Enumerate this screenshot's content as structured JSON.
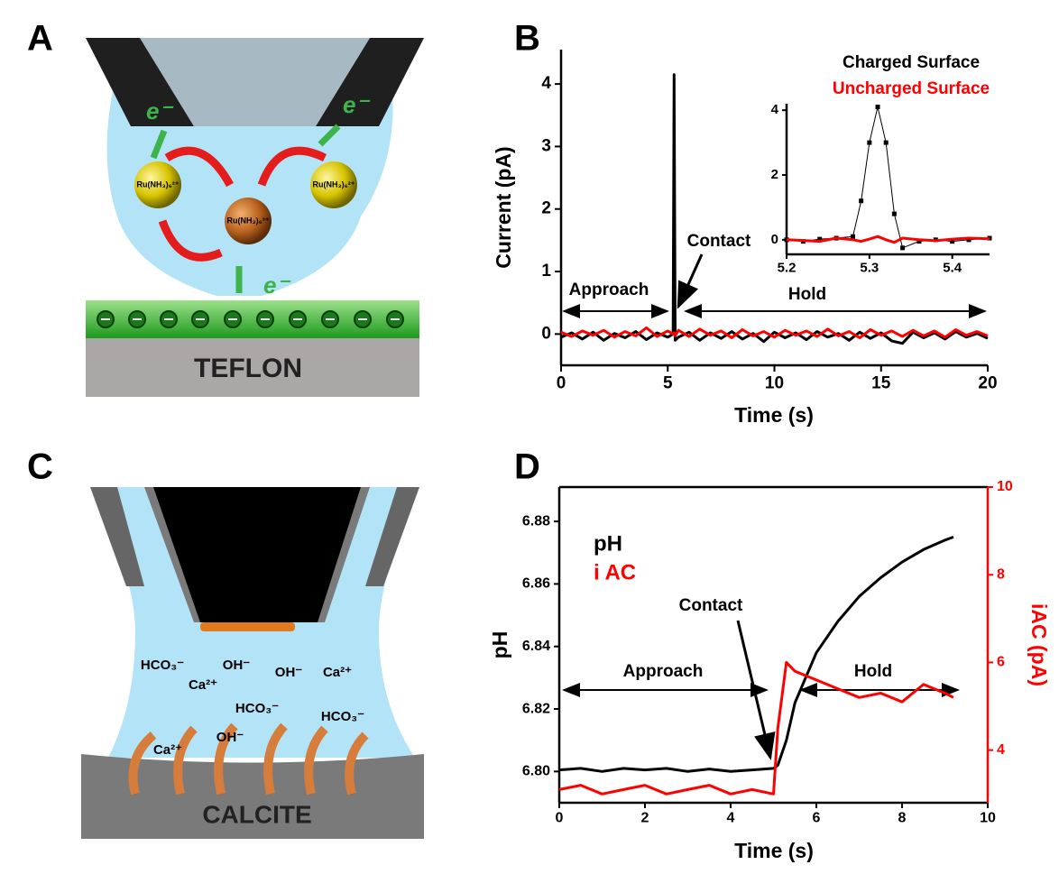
{
  "panel_a": {
    "label": "A",
    "electrons": [
      "e⁻",
      "e⁻",
      "e⁻"
    ],
    "molecules": [
      "Ru(NH₃)₆²⁺",
      "Ru(NH₃)₆³⁺",
      "Ru(NH₃)₆²⁺"
    ],
    "substrate": "TEFLON"
  },
  "panel_c": {
    "label": "C",
    "ions": [
      "HCO₃⁻",
      "OH⁻",
      "Ca²⁺",
      "OH⁻",
      "Ca²⁺",
      "HCO₃⁻",
      "Ca²⁺",
      "HCO₃⁻",
      "OH⁻"
    ],
    "substrate": "CALCITE"
  },
  "chart_data": [
    {
      "type": "line",
      "label": "B",
      "xlabel": "Time  (s)",
      "ylabel": "Current (pA)",
      "xlim": [
        0,
        20
      ],
      "ylim": [
        -0.5,
        4.55
      ],
      "xticks": [
        0,
        5,
        10,
        15,
        20
      ],
      "yticks": [
        0,
        1,
        2,
        3,
        4
      ],
      "x": [
        0,
        0.5,
        1,
        1.5,
        2,
        2.5,
        3,
        3.5,
        4,
        4.5,
        5,
        5.25,
        5.3,
        5.35,
        5.5,
        6,
        6.5,
        7,
        7.5,
        8,
        8.5,
        9,
        9.5,
        10,
        10.5,
        11,
        11.5,
        12,
        12.5,
        13,
        13.5,
        14,
        14.5,
        15,
        15.5,
        16,
        16.5,
        17,
        17.5,
        18,
        18.5,
        19,
        19.5,
        20
      ],
      "series": [
        {
          "name": "Charged Surface",
          "color": "#000000",
          "values": [
            -0.05,
            0.02,
            -0.08,
            0.03,
            -0.1,
            0.01,
            -0.06,
            0.04,
            -0.09,
            0.02,
            -0.05,
            0,
            4.15,
            -0.1,
            -0.05,
            0.03,
            -0.1,
            0.02,
            -0.07,
            0.04,
            -0.08,
            0.01,
            -0.12,
            0.03,
            -0.06,
            0.02,
            -0.09,
            0.04,
            -0.05,
            0.01,
            -0.1,
            0.03,
            -0.07,
            0.02,
            -0.11,
            -0.15,
            0.03,
            -0.06,
            0.02,
            -0.08,
            0.04,
            -0.05,
            0.01,
            -0.07
          ]
        },
        {
          "name": "Uncharged Surface",
          "color": "#ff0000",
          "values": [
            0.03,
            -0.04,
            0.05,
            -0.02,
            0.06,
            -0.05,
            0.04,
            -0.03,
            0.1,
            -0.04,
            0.05,
            0,
            0.02,
            -0.03,
            0.06,
            -0.04,
            0.08,
            -0.02,
            0.05,
            -0.06,
            0.07,
            -0.03,
            0.04,
            -0.05,
            0.06,
            -0.02,
            0.05,
            -0.04,
            0.08,
            -0.03,
            0.04,
            -0.06,
            0.07,
            -0.02,
            0.05,
            -0.04,
            0.06,
            -0.03,
            0.05,
            -0.05,
            0.07,
            -0.02,
            0.04,
            -0.03
          ]
        }
      ],
      "annotations": [
        "Approach",
        "Contact",
        "Hold"
      ]
    },
    {
      "type": "line",
      "xlim": [
        5.2,
        5.445
      ],
      "ylim": [
        -0.45,
        4.2
      ],
      "xticks": [
        5.2,
        5.3,
        5.4
      ],
      "yticks": [
        0,
        2,
        4
      ],
      "x": [
        5.2,
        5.22,
        5.24,
        5.26,
        5.28,
        5.29,
        5.3,
        5.31,
        5.32,
        5.33,
        5.34,
        5.36,
        5.38,
        5.4,
        5.42,
        5.445
      ],
      "series": [
        {
          "color": "#000000",
          "markers": true,
          "values": [
            0,
            -0.05,
            0.02,
            0.05,
            0.1,
            1.2,
            3.0,
            4.1,
            3.0,
            0.8,
            -0.25,
            -0.05,
            0,
            -0.05,
            0,
            0.05
          ]
        },
        {
          "color": "#ff0000",
          "values": [
            0,
            -0.02,
            -0.05,
            0.05,
            0,
            -0.05,
            0.02,
            0.1,
            0,
            -0.08,
            0.05,
            0,
            -0.03,
            0.02,
            0.05,
            0.03
          ]
        }
      ]
    },
    {
      "type": "line",
      "label": "D",
      "xlabel": "Time (s)",
      "ylabel": "pH",
      "y2label": "iAC (pA)",
      "xlim": [
        0,
        10
      ],
      "ylim": [
        6.79,
        6.891
      ],
      "y2lim": [
        2.8,
        10
      ],
      "xticks": [
        0,
        2,
        4,
        6,
        8,
        10
      ],
      "yticks": [
        {
          "value": 6.8,
          "label": "6.80"
        },
        6.82,
        6.84,
        6.86,
        6.88
      ],
      "y2ticks": [
        4,
        6,
        8,
        10
      ],
      "x": [
        0,
        0.5,
        1,
        1.5,
        2,
        2.5,
        3,
        3.5,
        4,
        4.5,
        5,
        5.1,
        5.3,
        5.5,
        6,
        6.5,
        7,
        7.5,
        8,
        8.5,
        9,
        9.2
      ],
      "series": [
        {
          "name": "pH",
          "color": "#000000",
          "values": [
            6.8005,
            6.801,
            6.8,
            6.801,
            6.8005,
            6.801,
            6.8,
            6.8008,
            6.8,
            6.8005,
            6.801,
            6.802,
            6.81,
            6.822,
            6.838,
            6.848,
            6.856,
            6.862,
            6.867,
            6.871,
            6.874,
            6.875
          ]
        },
        {
          "name": "i AC",
          "color": "#ff0000",
          "axis": "y2",
          "values": [
            3.1,
            3.2,
            3.0,
            3.1,
            3.2,
            3.0,
            3.1,
            3.2,
            3.0,
            3.1,
            3.0,
            4.5,
            6.0,
            5.8,
            5.6,
            5.4,
            5.2,
            5.3,
            5.1,
            5.5,
            5.3,
            5.2
          ]
        }
      ],
      "annotations": [
        "Approach",
        "Contact",
        "Hold"
      ]
    }
  ]
}
